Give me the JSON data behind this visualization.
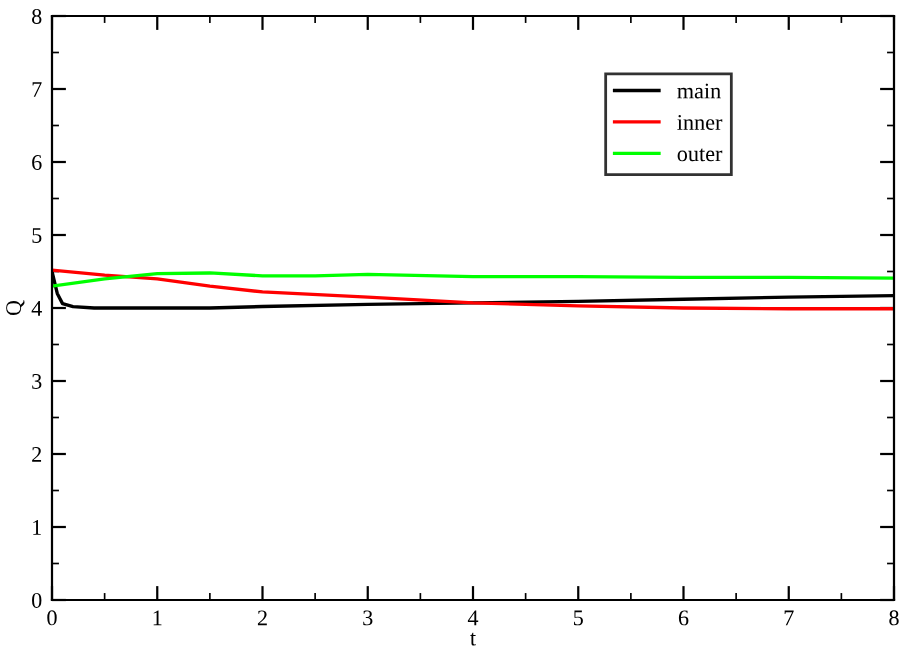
{
  "chart_data": {
    "type": "line",
    "xlabel": "t",
    "ylabel": "Q",
    "xlim": [
      0,
      8
    ],
    "ylim": [
      0,
      8
    ],
    "xticks": [
      0,
      1,
      2,
      3,
      4,
      5,
      6,
      7,
      8
    ],
    "yticks": [
      0,
      1,
      2,
      3,
      4,
      5,
      6,
      7,
      8
    ],
    "grid": false,
    "legend": "top right",
    "marker": "none",
    "line_style": "solid",
    "series": [
      {
        "name": "main",
        "color": "#000000",
        "x": [
          0,
          0.05,
          0.1,
          0.2,
          0.4,
          1,
          1.5,
          2,
          3,
          4,
          5,
          6,
          7,
          8
        ],
        "values": [
          4.5,
          4.2,
          4.06,
          4.02,
          4.0,
          4.0,
          4.0,
          4.02,
          4.05,
          4.07,
          4.09,
          4.12,
          4.15,
          4.17
        ]
      },
      {
        "name": "inner",
        "color": "#ff0000",
        "x": [
          0,
          0.5,
          1,
          1.5,
          2,
          3,
          4,
          5,
          6,
          7,
          8
        ],
        "values": [
          4.52,
          4.45,
          4.4,
          4.3,
          4.22,
          4.15,
          4.07,
          4.03,
          4.0,
          3.99,
          3.99
        ]
      },
      {
        "name": "outer",
        "color": "#00ff00",
        "x": [
          0,
          0.5,
          1,
          1.5,
          2,
          2.5,
          3,
          4,
          5,
          6,
          7,
          8
        ],
        "values": [
          4.3,
          4.4,
          4.47,
          4.48,
          4.44,
          4.44,
          4.46,
          4.43,
          4.43,
          4.42,
          4.42,
          4.41
        ]
      }
    ]
  }
}
